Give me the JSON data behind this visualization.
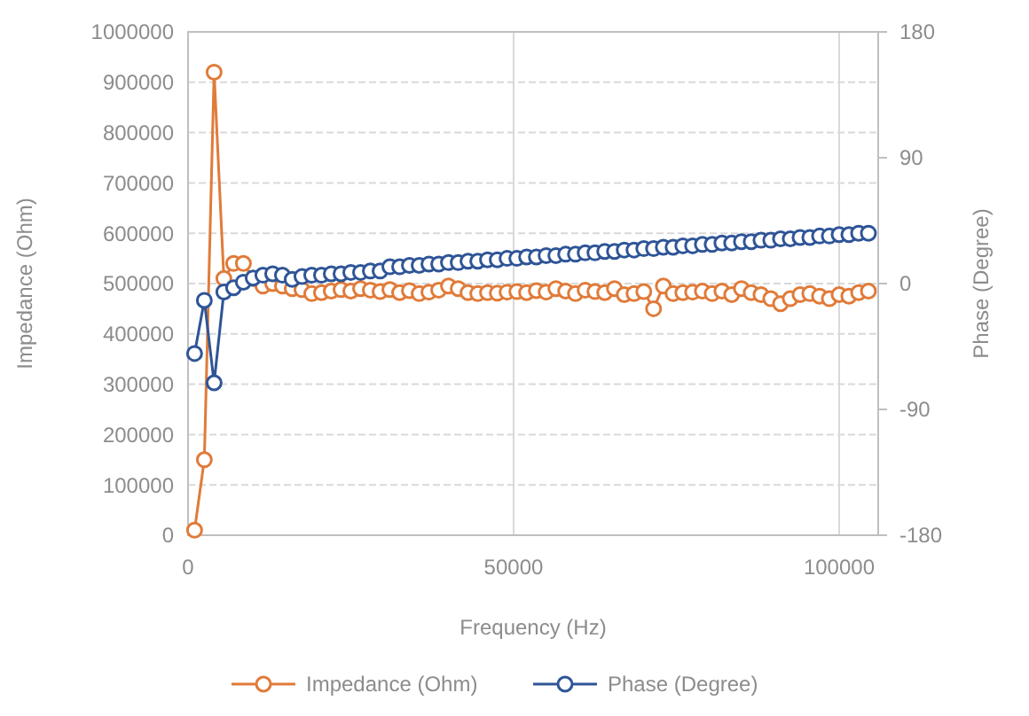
{
  "chart_data": {
    "type": "line",
    "xlabel": "Frequency (Hz)",
    "ylabel": "Impedance (Ohm)",
    "y2label": "Phase (Degree)",
    "xlim": [
      0,
      106000
    ],
    "xticks": [
      0,
      50000,
      100000
    ],
    "ylim": [
      0,
      1000000
    ],
    "yticks": [
      0,
      100000,
      200000,
      300000,
      400000,
      500000,
      600000,
      700000,
      800000,
      900000,
      1000000
    ],
    "y2lim": [
      -180,
      180
    ],
    "y2ticks": [
      -180,
      -90,
      0,
      90,
      180
    ],
    "grid": true,
    "legend": "bottom",
    "marker": "circle",
    "x": [
      1000,
      2500,
      4000,
      5500,
      7000,
      8500,
      10000,
      11500,
      13000,
      14500,
      16000,
      17500,
      19000,
      20500,
      22000,
      23500,
      25000,
      26500,
      28000,
      29500,
      31000,
      32500,
      34000,
      35500,
      37000,
      38500,
      40000,
      41500,
      43000,
      44500,
      46000,
      47500,
      49000,
      50500,
      52000,
      53500,
      55000,
      56500,
      58000,
      59500,
      61000,
      62500,
      64000,
      65500,
      67000,
      68500,
      70000,
      71500,
      73000,
      74500,
      76000,
      77500,
      79000,
      80500,
      82000,
      83500,
      85000,
      86500,
      88000,
      89500,
      91000,
      92500,
      94000,
      95500,
      97000,
      98500,
      100000,
      101500,
      103000,
      104500
    ],
    "series": [
      {
        "name": "Impedance (Ohm)",
        "color": "#e07b39",
        "values": [
          10000,
          150000,
          920000,
          510000,
          540000,
          540000,
          510000,
          495000,
          500000,
          495000,
          490000,
          488000,
          480000,
          482000,
          485000,
          488000,
          485000,
          490000,
          487000,
          484000,
          488000,
          482000,
          486000,
          480000,
          483000,
          487000,
          495000,
          490000,
          482000,
          480000,
          482000,
          481000,
          483000,
          484000,
          482000,
          486000,
          483000,
          490000,
          485000,
          480000,
          487000,
          484000,
          482000,
          490000,
          478000,
          480000,
          484000,
          450000,
          495000,
          480000,
          482000,
          483000,
          485000,
          480000,
          485000,
          478000,
          490000,
          482000,
          478000,
          470000,
          460000,
          470000,
          478000,
          480000,
          475000,
          470000,
          478000,
          475000,
          482000,
          485000
        ]
      },
      {
        "name": "Phase (Degree)",
        "color": "#2f5597",
        "axis": "y2",
        "values": [
          -50,
          -12,
          -71,
          -6,
          -3,
          1,
          4,
          6,
          7,
          6,
          3,
          5,
          6,
          6,
          7,
          7,
          8,
          8,
          9,
          9,
          12,
          12,
          13,
          13,
          14,
          14,
          15,
          15,
          16,
          16,
          17,
          17,
          18,
          18,
          19,
          19,
          20,
          20,
          21,
          21,
          22,
          22,
          23,
          23,
          24,
          24,
          25,
          25,
          26,
          26,
          27,
          27,
          28,
          28,
          29,
          29,
          30,
          30,
          31,
          31,
          32,
          32,
          33,
          33,
          34,
          34,
          35,
          35,
          36,
          36
        ]
      }
    ]
  }
}
